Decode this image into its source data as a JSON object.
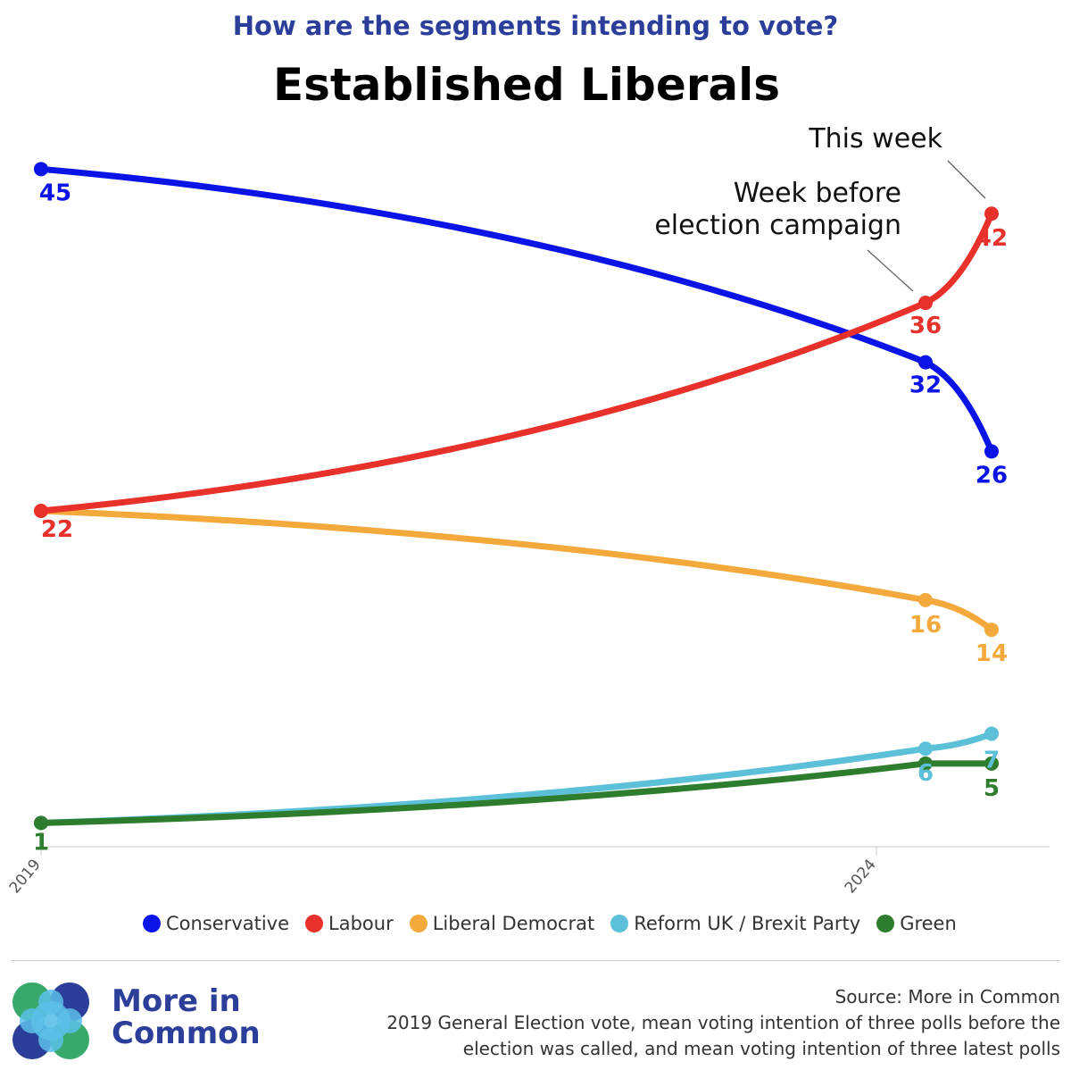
{
  "subtitle": "How are the segments intending to vote?",
  "title": "Established Liberals",
  "annotations": {
    "this_week": "This week",
    "week_before_line1": "Week before",
    "week_before_line2": "election campaign"
  },
  "chart_data": {
    "type": "line",
    "x_tick_labels": [
      "2019",
      "2024"
    ],
    "points": [
      "2019 General Election",
      "Week before election campaign",
      "This week"
    ],
    "ylim": [
      0,
      48
    ],
    "grid": false,
    "legend_position": "bottom",
    "series": [
      {
        "name": "Conservative",
        "color": "#0a14e6",
        "values": [
          45,
          32,
          26
        ]
      },
      {
        "name": "Labour",
        "color": "#e8312a",
        "values": [
          22,
          36,
          42
        ]
      },
      {
        "name": "Liberal Democrat",
        "color": "#f3a93c",
        "values": [
          22,
          16,
          14
        ]
      },
      {
        "name": "Reform UK / Brexit Party",
        "color": "#5bc0d8",
        "values": [
          1,
          6,
          7
        ]
      },
      {
        "name": "Green",
        "color": "#2e7d2e",
        "values": [
          1,
          5,
          5
        ]
      }
    ]
  },
  "legend": [
    {
      "label": "Conservative",
      "color": "#0a14e6"
    },
    {
      "label": "Labour",
      "color": "#e8312a"
    },
    {
      "label": "Liberal Democrat",
      "color": "#f3a93c"
    },
    {
      "label": "Reform UK / Brexit Party",
      "color": "#5bc0d8"
    },
    {
      "label": "Green",
      "color": "#2e7d2e"
    }
  ],
  "brand": {
    "line1": "More in",
    "line2": "Common"
  },
  "source": {
    "line1": "Source: More in Common",
    "line2": "2019 General Election vote, mean voting intention of three polls before the",
    "line3": "election was called, and mean voting intention of three latest polls"
  }
}
